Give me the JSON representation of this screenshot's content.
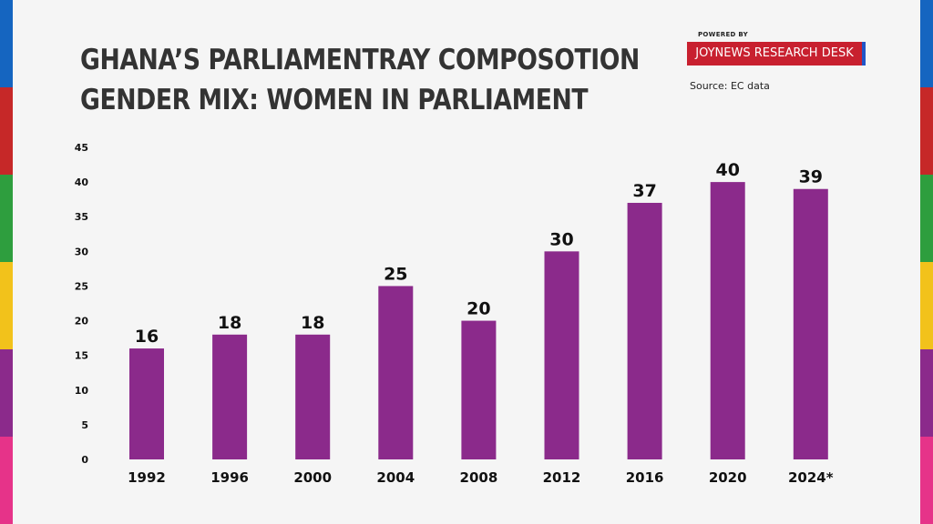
{
  "title_lines": [
    "GHANA’S PARLIAMENTRAY COMPOSOTION",
    "GENDER MIX: WOMEN IN PARLIAMENT"
  ],
  "branding": {
    "powered_by": "POWERED BY",
    "desk": "JOYNEWS RESEARCH DESK",
    "source": "Source: EC data"
  },
  "colors": {
    "bar": "#8b2a8b",
    "brand_bg": "#c8202f",
    "brand_accent": "#2155c7",
    "stripes": [
      "#1565c0",
      "#c62828",
      "#2e9e3e",
      "#f2c21b",
      "#8b2a8b",
      "#e63389"
    ]
  },
  "chart_data": {
    "type": "bar",
    "title": "GHANA’S PARLIAMENTRAY COMPOSOTION GENDER MIX: WOMEN IN PARLIAMENT",
    "xlabel": "",
    "ylabel": "",
    "categories": [
      "1992",
      "1996",
      "2000",
      "2004",
      "2008",
      "2012",
      "2016",
      "2020",
      "2024*"
    ],
    "values": [
      16,
      18,
      18,
      25,
      20,
      30,
      37,
      40,
      39
    ],
    "ylim": [
      0,
      45
    ],
    "yticks": [
      "0",
      "5",
      "10",
      "15",
      "20",
      "25",
      "30",
      "35",
      "40",
      "45"
    ],
    "grid": false,
    "data_labels": true
  }
}
